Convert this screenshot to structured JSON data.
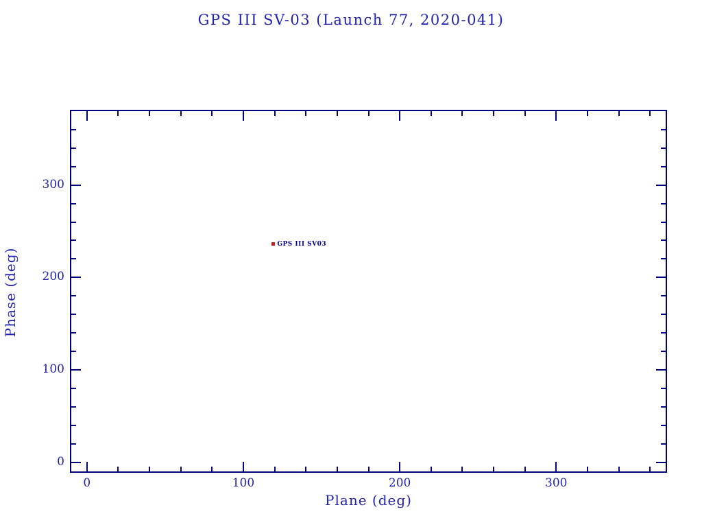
{
  "title": "GPS III SV-03 (Launch 77, 2020-041)",
  "colors": {
    "background": "#ffffff",
    "axis": "#00007e",
    "text": "#2222b0",
    "marker_red": "#c32121",
    "point_label_blue": "#000099"
  },
  "chart_data": {
    "type": "scatter",
    "title": "GPS III SV-03 (Launch 77, 2020-041)",
    "xlabel": "Plane (deg)",
    "ylabel": "Phase (deg)",
    "xlim": [
      -10,
      370
    ],
    "ylim": [
      -10,
      380
    ],
    "x_major_ticks": [
      0,
      100,
      200,
      300
    ],
    "x_minor_step": 20,
    "y_major_ticks": [
      0,
      100,
      200,
      300
    ],
    "y_minor_step": 20,
    "grid": false,
    "legend": "none",
    "points": [
      {
        "label": "GPS III SV03",
        "x": 119,
        "y": 236,
        "marker": "square",
        "marker_color": "#c32121",
        "label_color": "#000099"
      }
    ]
  }
}
